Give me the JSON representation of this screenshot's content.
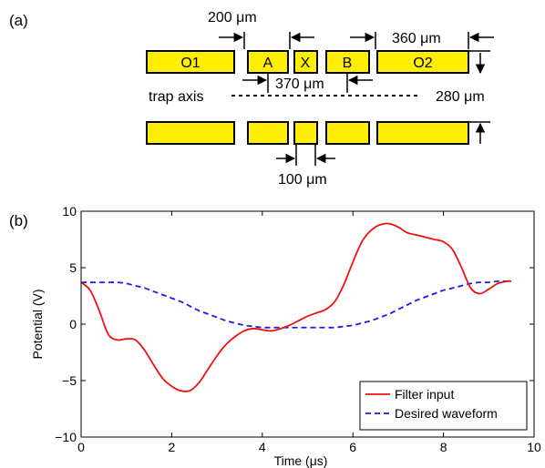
{
  "panel_a": {
    "label": "(a)",
    "electrodes_top": [
      "O1",
      "A",
      "X",
      "B",
      "O2"
    ],
    "dim_200": "200 μm",
    "dim_360": "360 μm",
    "dim_370": "370 μm",
    "dim_280": "280 μm",
    "dim_100": "100 μm",
    "trap_axis_label": "trap axis",
    "electrode_color": "#ffee00"
  },
  "panel_b": {
    "label": "(b)"
  },
  "chart_data": {
    "type": "line",
    "xlabel": "Time (μs)",
    "ylabel": "Potential (V)",
    "xlim": [
      0,
      10
    ],
    "ylim": [
      -10,
      10
    ],
    "xticks": [
      "0",
      "2",
      "4",
      "6",
      "8",
      "10"
    ],
    "yticks": [
      "10",
      "5",
      "0",
      "−5",
      "−10"
    ],
    "legend_position": "bottom-right",
    "series": [
      {
        "name": "Filter input",
        "color": "#ee1111",
        "style": "solid",
        "x": [
          0,
          0.2,
          0.4,
          0.6,
          0.8,
          1.0,
          1.2,
          1.4,
          1.6,
          1.8,
          2.0,
          2.2,
          2.4,
          2.6,
          2.8,
          3.0,
          3.2,
          3.4,
          3.6,
          3.8,
          4.0,
          4.2,
          4.4,
          4.6,
          4.8,
          5.0,
          5.2,
          5.4,
          5.6,
          5.8,
          6.0,
          6.2,
          6.4,
          6.6,
          6.8,
          7.0,
          7.2,
          7.4,
          7.6,
          7.8,
          8.0,
          8.2,
          8.4,
          8.6,
          8.8,
          9.0,
          9.2,
          9.4,
          9.5
        ],
        "y": [
          3.7,
          3.0,
          1.2,
          -0.9,
          -1.4,
          -1.3,
          -1.4,
          -2.3,
          -3.6,
          -4.8,
          -5.5,
          -5.9,
          -5.9,
          -5.2,
          -4.0,
          -2.8,
          -1.8,
          -1.1,
          -0.6,
          -0.4,
          -0.5,
          -0.6,
          -0.4,
          -0.1,
          0.3,
          0.7,
          1.0,
          1.3,
          2.0,
          3.5,
          5.5,
          7.3,
          8.3,
          8.8,
          8.9,
          8.6,
          8.1,
          7.9,
          7.7,
          7.5,
          7.3,
          6.6,
          5.0,
          3.2,
          2.7,
          3.1,
          3.6,
          3.8,
          3.8
        ]
      },
      {
        "name": "Desired waveform",
        "color": "#1a1aee",
        "style": "dashed",
        "x": [
          0,
          0.2,
          0.4,
          0.6,
          0.8,
          1.0,
          1.2,
          1.4,
          1.6,
          1.8,
          2.0,
          2.2,
          2.4,
          2.6,
          2.8,
          3.0,
          3.2,
          3.4,
          3.6,
          3.8,
          4.0,
          4.2,
          4.4,
          4.6,
          4.8,
          5.0,
          5.2,
          5.4,
          5.6,
          5.8,
          6.0,
          6.2,
          6.4,
          6.6,
          6.8,
          7.0,
          7.2,
          7.4,
          7.6,
          7.8,
          8.0,
          8.2,
          8.4,
          8.6,
          8.8,
          9.0,
          9.2,
          9.4,
          9.5
        ],
        "y": [
          3.7,
          3.7,
          3.7,
          3.7,
          3.7,
          3.6,
          3.4,
          3.2,
          2.9,
          2.6,
          2.3,
          2.0,
          1.6,
          1.2,
          0.9,
          0.6,
          0.3,
          0.1,
          -0.1,
          -0.2,
          -0.3,
          -0.3,
          -0.3,
          -0.3,
          -0.3,
          -0.3,
          -0.3,
          -0.3,
          -0.3,
          -0.2,
          -0.1,
          0.1,
          0.3,
          0.6,
          0.9,
          1.3,
          1.7,
          2.1,
          2.4,
          2.7,
          3.0,
          3.2,
          3.4,
          3.6,
          3.7,
          3.7,
          3.8,
          3.8,
          3.8
        ]
      }
    ]
  }
}
